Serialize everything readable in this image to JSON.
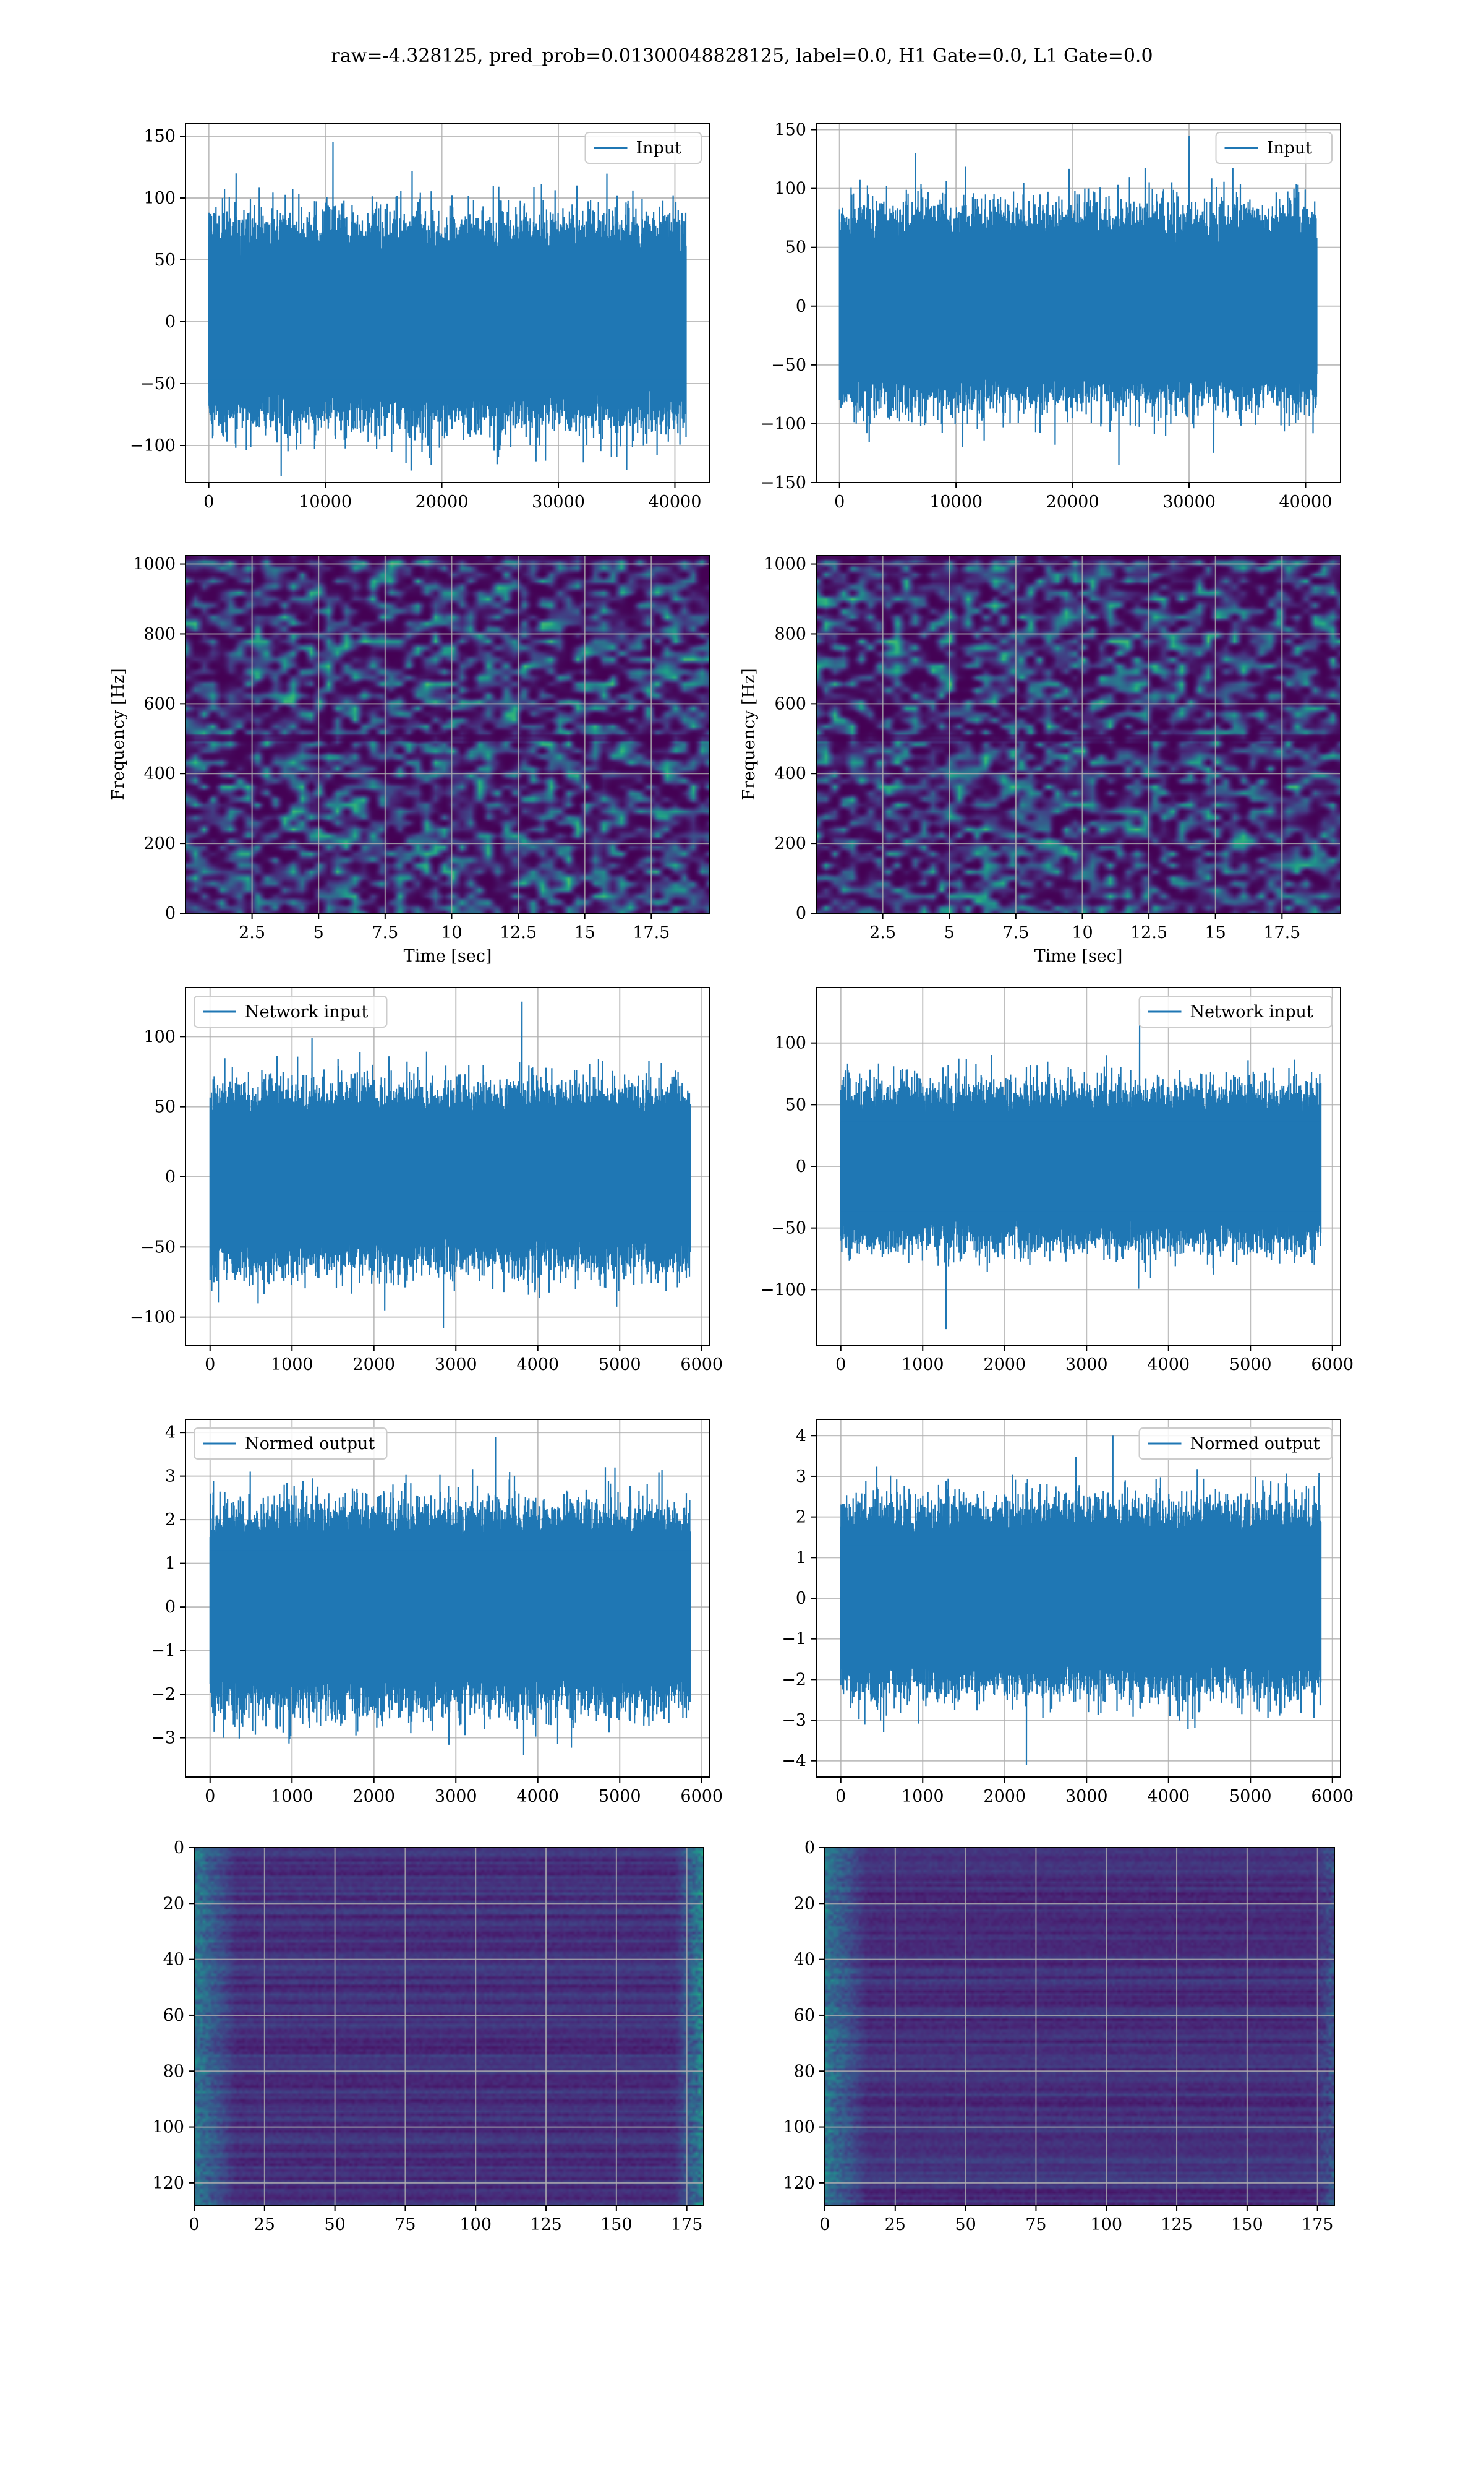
{
  "figure": {
    "title": "raw=-4.328125, pred_prob=0.01300048828125, label=0.0, H1 Gate=0.0, L1 Gate=0.0"
  },
  "colors": {
    "line": "#1f77b4",
    "grid": "#b0b0b0",
    "viridis_dark": "#440154",
    "viridis_mid": "#3b528b",
    "viridis_teal": "#21918c",
    "viridis_green": "#5ec962",
    "viridis_yellow": "#fde725"
  },
  "chart_data": [
    {
      "type": "line",
      "legend": "Input",
      "legend_loc": "upper right",
      "grid": true,
      "xlim": [
        -2000,
        43000
      ],
      "ylim": [
        -130,
        160
      ],
      "xticks": [
        0,
        10000,
        20000,
        30000,
        40000
      ],
      "yticks": [
        -100,
        -50,
        0,
        50,
        100,
        150
      ],
      "series": {
        "n_samples": 40960,
        "x_range": [
          0,
          40959
        ],
        "center": 0,
        "typical_band": [
          -90,
          90
        ],
        "max": 145,
        "min": -125
      }
    },
    {
      "type": "line",
      "legend": "Input",
      "legend_loc": "upper right",
      "grid": true,
      "xlim": [
        -2000,
        43000
      ],
      "ylim": [
        -150,
        155
      ],
      "xticks": [
        0,
        10000,
        20000,
        30000,
        40000
      ],
      "yticks": [
        -150,
        -100,
        -50,
        0,
        50,
        100,
        150
      ],
      "series": {
        "n_samples": 40960,
        "x_range": [
          0,
          40959
        ],
        "center": 0,
        "typical_band": [
          -90,
          90
        ],
        "max": 145,
        "min": -135
      }
    },
    {
      "type": "heatmap",
      "colormap": "viridis",
      "grid": true,
      "xlabel": "Time [sec]",
      "ylabel": "Frequency [Hz]",
      "xlim": [
        0,
        19.7
      ],
      "ylim": [
        0,
        1024
      ],
      "xticks": [
        2.5,
        5.0,
        7.5,
        10.0,
        12.5,
        15.0,
        17.5
      ],
      "yticks": [
        0,
        200,
        400,
        600,
        800,
        1000
      ]
    },
    {
      "type": "heatmap",
      "colormap": "viridis",
      "grid": true,
      "xlabel": "Time [sec]",
      "ylabel": "Frequency [Hz]",
      "xlim": [
        0,
        19.7
      ],
      "ylim": [
        0,
        1024
      ],
      "xticks": [
        2.5,
        5.0,
        7.5,
        10.0,
        12.5,
        15.0,
        17.5
      ],
      "yticks": [
        0,
        200,
        400,
        600,
        800,
        1000
      ]
    },
    {
      "type": "line",
      "legend": "Network input",
      "legend_loc": "upper left",
      "grid": true,
      "xlim": [
        -300,
        6100
      ],
      "ylim": [
        -120,
        135
      ],
      "xticks": [
        0,
        1000,
        2000,
        3000,
        4000,
        5000,
        6000
      ],
      "yticks": [
        -100,
        -50,
        0,
        50,
        100
      ],
      "series": {
        "n_samples": 5860,
        "x_range": [
          0,
          5859
        ],
        "center": 0,
        "typical_band": [
          -70,
          70
        ],
        "max": 125,
        "min": -108
      }
    },
    {
      "type": "line",
      "legend": "Network input",
      "legend_loc": "upper right",
      "grid": true,
      "xlim": [
        -300,
        6100
      ],
      "ylim": [
        -145,
        145
      ],
      "xticks": [
        0,
        1000,
        2000,
        3000,
        4000,
        5000,
        6000
      ],
      "yticks": [
        -100,
        -50,
        0,
        50,
        100
      ],
      "series": {
        "n_samples": 5860,
        "x_range": [
          0,
          5859
        ],
        "center": 0,
        "typical_band": [
          -70,
          70
        ],
        "max": 128,
        "min": -132
      }
    },
    {
      "type": "line",
      "legend": "Normed output",
      "legend_loc": "upper left",
      "grid": true,
      "xlim": [
        -300,
        6100
      ],
      "ylim": [
        -3.9,
        4.3
      ],
      "xticks": [
        0,
        1000,
        2000,
        3000,
        4000,
        5000,
        6000
      ],
      "yticks": [
        -3,
        -2,
        -1,
        0,
        1,
        2,
        3,
        4
      ],
      "series": {
        "n_samples": 5860,
        "x_range": [
          0,
          5859
        ],
        "center": 0,
        "typical_band": [
          -2.5,
          2.5
        ],
        "max": 3.9,
        "min": -3.4
      }
    },
    {
      "type": "line",
      "legend": "Normed output",
      "legend_loc": "upper right",
      "grid": true,
      "xlim": [
        -300,
        6100
      ],
      "ylim": [
        -4.4,
        4.4
      ],
      "xticks": [
        0,
        1000,
        2000,
        3000,
        4000,
        5000,
        6000
      ],
      "yticks": [
        -4,
        -3,
        -2,
        -1,
        0,
        1,
        2,
        3,
        4
      ],
      "series": {
        "n_samples": 5860,
        "x_range": [
          0,
          5859
        ],
        "center": 0,
        "typical_band": [
          -2.5,
          2.5
        ],
        "max": 4.0,
        "min": -4.1
      }
    },
    {
      "type": "heatmap",
      "colormap": "viridis",
      "grid": true,
      "origin": "upper",
      "xlim": [
        0,
        181
      ],
      "ylim": [
        128,
        0
      ],
      "xticks": [
        0,
        25,
        50,
        75,
        100,
        125,
        150,
        175
      ],
      "yticks": [
        0,
        20,
        40,
        60,
        80,
        100,
        120
      ]
    },
    {
      "type": "heatmap",
      "colormap": "viridis",
      "grid": true,
      "origin": "upper",
      "xlim": [
        0,
        181
      ],
      "ylim": [
        128,
        0
      ],
      "xticks": [
        0,
        25,
        50,
        75,
        100,
        125,
        150,
        175
      ],
      "yticks": [
        0,
        20,
        40,
        60,
        80,
        100,
        120
      ]
    }
  ]
}
